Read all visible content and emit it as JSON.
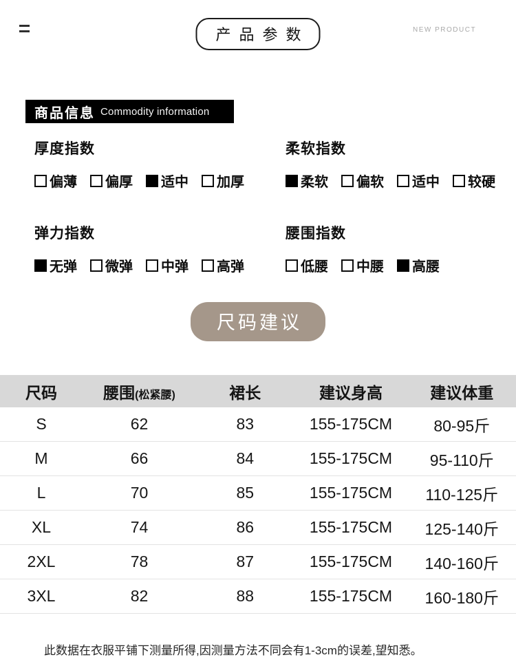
{
  "header": {
    "title": "产品参数",
    "subtitle": "NEW PRODUCT"
  },
  "info_banner": {
    "title_cn": "商品信息",
    "title_en": "Commodity information"
  },
  "index_sections": [
    {
      "title": "厚度指数",
      "options": [
        {
          "label": "偏薄",
          "checked": false
        },
        {
          "label": "偏厚",
          "checked": false
        },
        {
          "label": "适中",
          "checked": true
        },
        {
          "label": "加厚",
          "checked": false
        }
      ]
    },
    {
      "title": "柔软指数",
      "options": [
        {
          "label": "柔软",
          "checked": true
        },
        {
          "label": "偏软",
          "checked": false
        },
        {
          "label": "适中",
          "checked": false
        },
        {
          "label": "较硬",
          "checked": false
        }
      ]
    },
    {
      "title": "弹力指数",
      "options": [
        {
          "label": "无弹",
          "checked": true
        },
        {
          "label": "微弹",
          "checked": false
        },
        {
          "label": "中弹",
          "checked": false
        },
        {
          "label": "高弹",
          "checked": false
        }
      ]
    },
    {
      "title": "腰围指数",
      "options": [
        {
          "label": "低腰",
          "checked": false
        },
        {
          "label": "中腰",
          "checked": false
        },
        {
          "label": "高腰",
          "checked": true
        }
      ]
    }
  ],
  "size_badge": {
    "label": "尺码建议"
  },
  "size_table": {
    "headers": [
      {
        "label": "尺码"
      },
      {
        "label": "腰围",
        "note": "(松紧腰)"
      },
      {
        "label": "裙长"
      },
      {
        "label": "建议身高"
      },
      {
        "label": "建议体重"
      }
    ],
    "rows": [
      [
        "S",
        "62",
        "83",
        "155-175CM",
        "80-95斤"
      ],
      [
        "M",
        "66",
        "84",
        "155-175CM",
        "95-110斤"
      ],
      [
        "L",
        "70",
        "85",
        "155-175CM",
        "110-125斤"
      ],
      [
        "XL",
        "74",
        "86",
        "155-175CM",
        "125-140斤"
      ],
      [
        "2XL",
        "78",
        "87",
        "155-175CM",
        "140-160斤"
      ],
      [
        "3XL",
        "82",
        "88",
        "155-175CM",
        "160-180斤"
      ]
    ]
  },
  "footnote": "此数据在衣服平铺下测量所得,因测量方法不同会有1-3cm的误差,望知悉。",
  "colors": {
    "badge": "#a5978a",
    "banner_bg": "#000000",
    "table_header_bg": "#d8d8d8"
  }
}
